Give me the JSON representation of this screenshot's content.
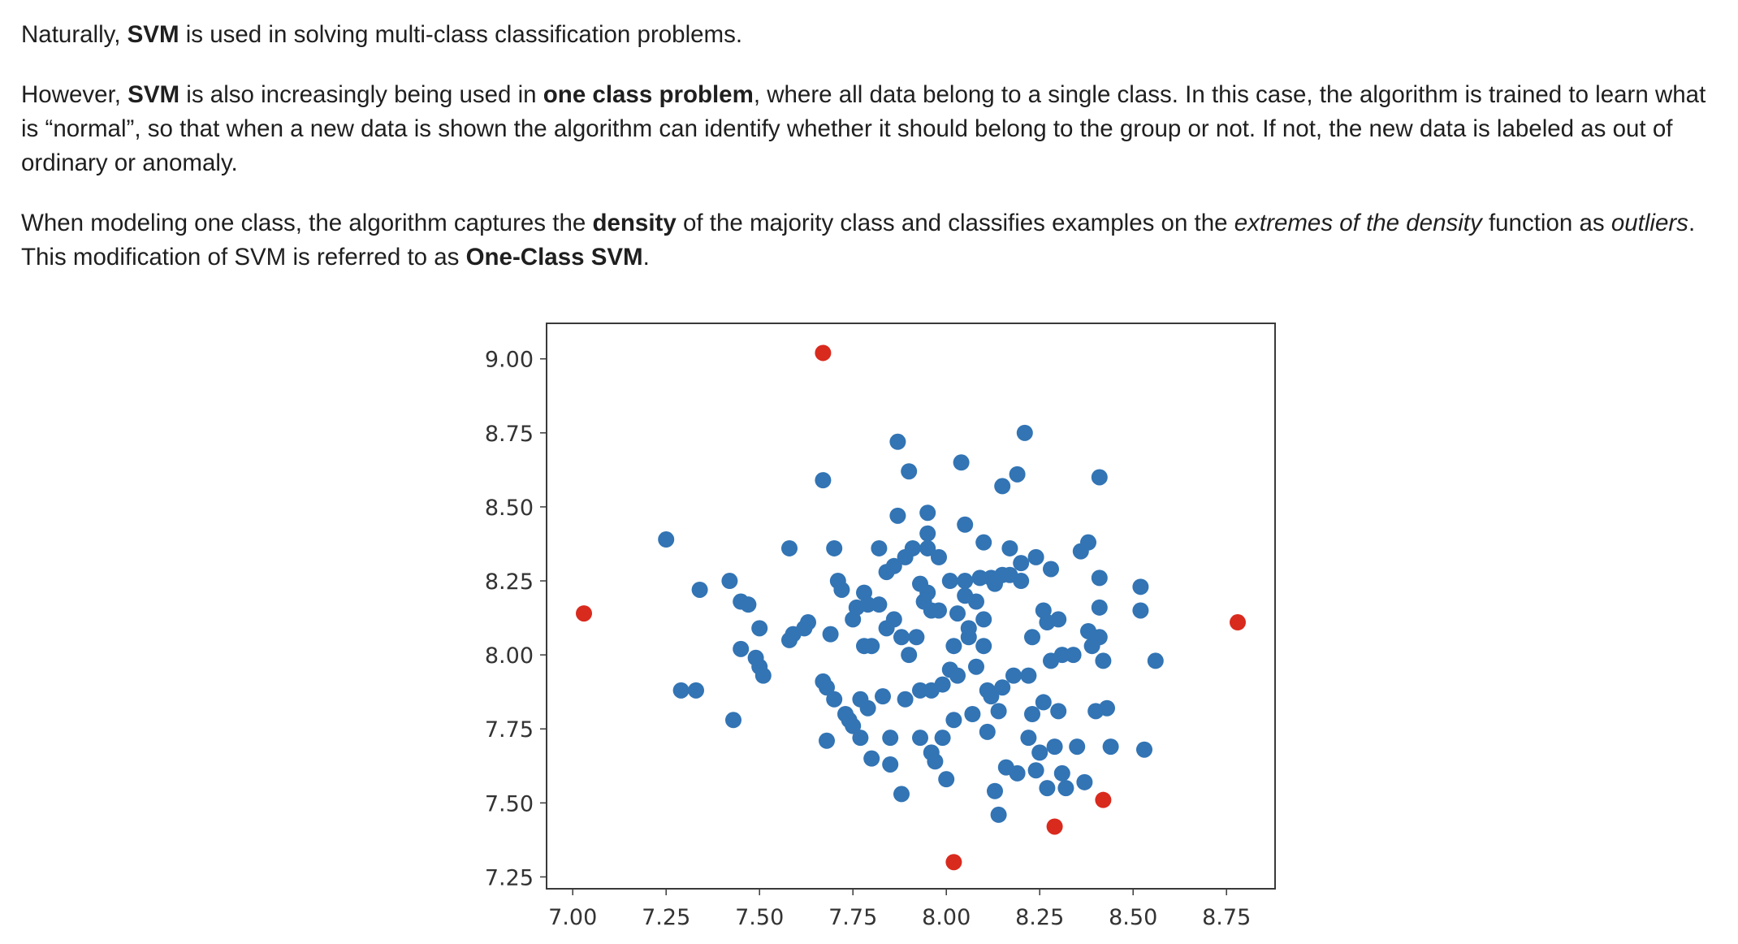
{
  "paragraphs": {
    "p1": {
      "t1": "Naturally, ",
      "b1": "SVM",
      "t2": " is used in solving multi-class classification problems."
    },
    "p2": {
      "t1": "However, ",
      "b1": "SVM",
      "t2": " is also increasingly being used in ",
      "b2": "one class problem",
      "t3": ", where all data belong to a single class. In this case, the algorithm is trained to learn what is “normal”, so that when a new data is shown the algorithm can identify whether it should belong to the group or not. If not, the new data is labeled as out of ordinary or anomaly."
    },
    "p3": {
      "t1": "When modeling one class, the algorithm captures the ",
      "b1": "density",
      "t2": " of the majority class and classifies examples on the ",
      "i1": "extremes of the density",
      "t3": " function as ",
      "i2": "outliers",
      "t4": ". This modification of SVM is referred to as ",
      "b2": "One-Class SVM",
      "t5": "."
    }
  },
  "chart_data": {
    "type": "scatter",
    "title": "",
    "xlabel": "",
    "ylabel": "",
    "xlim": [
      6.93,
      8.88
    ],
    "ylim": [
      7.21,
      9.12
    ],
    "xticks": [
      "7.00",
      "7.25",
      "7.50",
      "7.75",
      "8.00",
      "8.25",
      "8.50",
      "8.75"
    ],
    "yticks": [
      "9.00",
      "8.75",
      "8.50",
      "8.25",
      "8.00",
      "7.75",
      "7.50",
      "7.25"
    ],
    "grid": false,
    "legend": "none",
    "colors": {
      "inlier": "#3274b4",
      "outlier": "#d92a1e"
    },
    "series": [
      {
        "color": "#3274b4",
        "points": [
          [
            7.25,
            8.39
          ],
          [
            7.29,
            7.88
          ],
          [
            7.33,
            7.88
          ],
          [
            7.34,
            8.22
          ],
          [
            7.42,
            8.25
          ],
          [
            7.43,
            7.78
          ],
          [
            7.45,
            8.18
          ],
          [
            7.47,
            8.17
          ],
          [
            7.45,
            8.02
          ],
          [
            7.49,
            7.99
          ],
          [
            7.5,
            7.96
          ],
          [
            7.51,
            7.93
          ],
          [
            7.5,
            8.09
          ],
          [
            7.58,
            8.36
          ],
          [
            7.58,
            8.05
          ],
          [
            7.59,
            8.07
          ],
          [
            7.62,
            8.09
          ],
          [
            7.63,
            8.11
          ],
          [
            7.67,
            8.59
          ],
          [
            7.67,
            7.91
          ],
          [
            7.68,
            7.89
          ],
          [
            7.69,
            8.07
          ],
          [
            7.68,
            7.71
          ],
          [
            7.7,
            7.85
          ],
          [
            7.7,
            8.36
          ],
          [
            7.71,
            8.25
          ],
          [
            7.72,
            8.22
          ],
          [
            7.73,
            7.8
          ],
          [
            7.74,
            7.78
          ],
          [
            7.75,
            7.76
          ],
          [
            7.75,
            8.12
          ],
          [
            7.76,
            8.16
          ],
          [
            7.77,
            7.72
          ],
          [
            7.77,
            7.85
          ],
          [
            7.78,
            8.21
          ],
          [
            7.78,
            8.03
          ],
          [
            7.79,
            7.82
          ],
          [
            7.79,
            8.17
          ],
          [
            7.8,
            8.03
          ],
          [
            7.8,
            7.65
          ],
          [
            7.82,
            8.36
          ],
          [
            7.83,
            7.86
          ],
          [
            7.84,
            8.09
          ],
          [
            7.84,
            8.28
          ],
          [
            7.85,
            7.63
          ],
          [
            7.85,
            7.72
          ],
          [
            7.86,
            8.12
          ],
          [
            7.86,
            8.3
          ],
          [
            7.87,
            8.72
          ],
          [
            7.87,
            8.47
          ],
          [
            7.88,
            7.53
          ],
          [
            7.89,
            8.33
          ],
          [
            7.89,
            7.85
          ],
          [
            7.9,
            8.62
          ],
          [
            7.9,
            8.0
          ],
          [
            7.91,
            8.36
          ],
          [
            7.92,
            8.06
          ],
          [
            7.93,
            7.72
          ],
          [
            7.93,
            7.88
          ],
          [
            7.94,
            8.18
          ],
          [
            7.95,
            8.48
          ],
          [
            7.95,
            8.41
          ],
          [
            7.95,
            8.21
          ],
          [
            7.96,
            7.88
          ],
          [
            7.96,
            8.15
          ],
          [
            7.96,
            7.67
          ],
          [
            7.97,
            7.64
          ],
          [
            7.98,
            8.33
          ],
          [
            7.98,
            8.15
          ],
          [
            7.99,
            7.9
          ],
          [
            7.99,
            7.72
          ],
          [
            8.0,
            7.58
          ],
          [
            8.01,
            8.25
          ],
          [
            8.01,
            7.95
          ],
          [
            8.02,
            8.03
          ],
          [
            8.02,
            7.78
          ],
          [
            8.03,
            8.14
          ],
          [
            8.03,
            7.93
          ],
          [
            8.04,
            8.65
          ],
          [
            8.05,
            8.44
          ],
          [
            8.05,
            8.25
          ],
          [
            8.06,
            8.09
          ],
          [
            8.06,
            8.06
          ],
          [
            8.07,
            7.8
          ],
          [
            8.08,
            8.18
          ],
          [
            8.08,
            7.96
          ],
          [
            8.09,
            8.26
          ],
          [
            8.1,
            8.03
          ],
          [
            8.1,
            8.38
          ],
          [
            8.1,
            8.12
          ],
          [
            8.11,
            7.88
          ],
          [
            8.11,
            7.74
          ],
          [
            8.12,
            7.86
          ],
          [
            8.12,
            8.26
          ],
          [
            8.13,
            7.54
          ],
          [
            8.13,
            8.24
          ],
          [
            8.14,
            7.46
          ],
          [
            8.14,
            7.81
          ],
          [
            8.15,
            8.57
          ],
          [
            8.15,
            8.27
          ],
          [
            8.15,
            7.89
          ],
          [
            8.16,
            7.62
          ],
          [
            8.17,
            8.27
          ],
          [
            8.18,
            7.93
          ],
          [
            8.19,
            7.6
          ],
          [
            8.19,
            8.61
          ],
          [
            8.2,
            8.25
          ],
          [
            8.2,
            8.31
          ],
          [
            8.21,
            8.75
          ],
          [
            8.22,
            7.72
          ],
          [
            8.22,
            7.93
          ],
          [
            8.23,
            7.8
          ],
          [
            8.23,
            8.06
          ],
          [
            8.24,
            8.33
          ],
          [
            8.24,
            7.61
          ],
          [
            8.25,
            7.67
          ],
          [
            8.26,
            7.84
          ],
          [
            8.26,
            8.15
          ],
          [
            8.27,
            8.11
          ],
          [
            8.27,
            7.55
          ],
          [
            8.28,
            8.29
          ],
          [
            8.29,
            7.69
          ],
          [
            8.3,
            8.12
          ],
          [
            8.3,
            7.81
          ],
          [
            8.31,
            8.0
          ],
          [
            8.31,
            7.6
          ],
          [
            8.32,
            7.55
          ],
          [
            8.34,
            8.0
          ],
          [
            8.35,
            7.69
          ],
          [
            8.36,
            8.35
          ],
          [
            8.37,
            7.57
          ],
          [
            8.38,
            8.38
          ],
          [
            8.38,
            8.08
          ],
          [
            8.39,
            8.03
          ],
          [
            8.4,
            7.81
          ],
          [
            8.41,
            8.6
          ],
          [
            8.41,
            8.26
          ],
          [
            8.41,
            8.16
          ],
          [
            8.41,
            8.06
          ],
          [
            8.42,
            7.98
          ],
          [
            8.43,
            7.82
          ],
          [
            8.44,
            7.69
          ],
          [
            8.52,
            8.23
          ],
          [
            8.52,
            8.15
          ],
          [
            8.53,
            7.68
          ],
          [
            8.56,
            7.98
          ],
          [
            7.95,
            8.36
          ],
          [
            7.88,
            8.06
          ],
          [
            7.82,
            8.17
          ],
          [
            8.05,
            8.2
          ],
          [
            7.93,
            8.24
          ],
          [
            8.17,
            8.36
          ],
          [
            8.28,
            7.98
          ]
        ]
      },
      {
        "color": "#d92a1e",
        "points": [
          [
            7.67,
            9.02
          ],
          [
            7.03,
            8.14
          ],
          [
            8.78,
            8.11
          ],
          [
            8.02,
            7.3
          ],
          [
            8.29,
            7.42
          ],
          [
            8.42,
            7.51
          ]
        ]
      }
    ]
  }
}
